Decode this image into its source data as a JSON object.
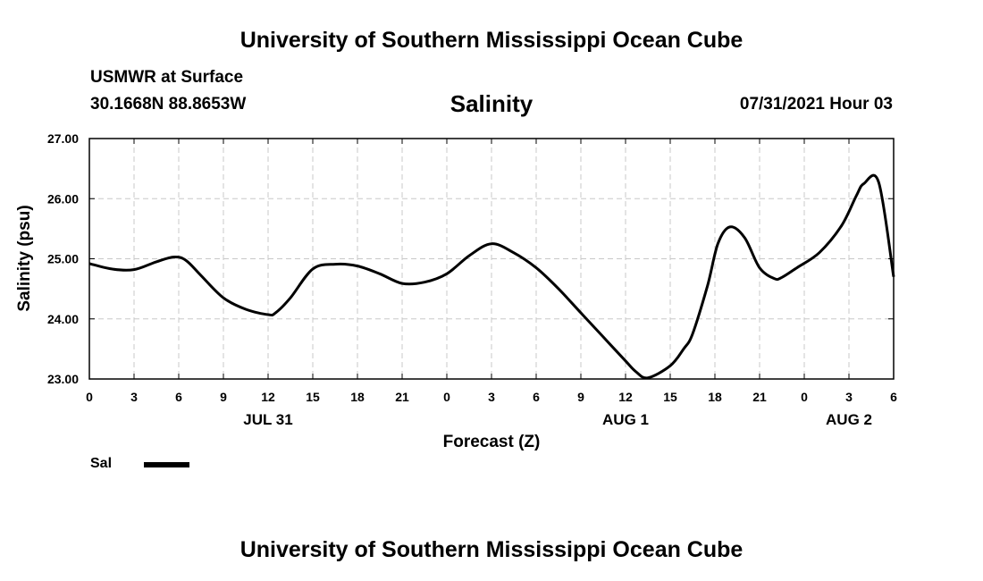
{
  "header": {
    "title": "University of Southern Mississippi Ocean Cube",
    "station_name": "USMWR at Surface",
    "coords": "30.1668N  88.8653W",
    "chart_title": "Salinity",
    "forecast_time": "07/31/2021 Hour 03"
  },
  "footer": {
    "title": "University of Southern Mississippi Ocean Cube"
  },
  "legend": {
    "label": "Sal",
    "color": "#000000"
  },
  "chart_data": {
    "type": "line",
    "title": "Salinity",
    "xlabel": "Forecast (Z)",
    "ylabel": "Salinity (psu)",
    "ylim": [
      23.0,
      27.0
    ],
    "y_ticks": [
      "23.00",
      "24.00",
      "25.00",
      "26.00",
      "27.00"
    ],
    "xlim": [
      0,
      54
    ],
    "x_tick_labels": [
      "0",
      "3",
      "6",
      "9",
      "12",
      "15",
      "18",
      "21",
      "0",
      "3",
      "6",
      "9",
      "12",
      "15",
      "18",
      "21",
      "0",
      "3",
      "6"
    ],
    "date_labels": [
      {
        "label": "JUL 31",
        "at": 12
      },
      {
        "label": "AUG 1",
        "at": 36
      },
      {
        "label": "AUG 2",
        "at": 51
      }
    ],
    "grid": true,
    "line_color": "#000000",
    "series": [
      {
        "name": "Sal",
        "x": [
          0,
          1.5,
          3,
          4.5,
          5.7,
          6.5,
          7.5,
          9,
          10.5,
          12,
          12.5,
          13.5,
          15,
          16.5,
          18,
          19.5,
          21,
          22.5,
          24,
          25.5,
          27,
          28.5,
          30,
          31.5,
          33,
          34.5,
          36,
          36.7,
          37.5,
          39,
          39.9,
          40.5,
          41.5,
          42.2,
          43,
          44,
          45,
          46,
          46.5,
          47.5,
          49,
          50.5,
          51.5,
          52,
          53,
          54
        ],
        "y": [
          24.92,
          24.83,
          24.82,
          24.95,
          25.03,
          24.97,
          24.72,
          24.35,
          24.16,
          24.07,
          24.1,
          24.35,
          24.83,
          24.91,
          24.88,
          24.75,
          24.59,
          24.61,
          24.75,
          25.05,
          25.25,
          25.1,
          24.85,
          24.5,
          24.1,
          23.7,
          23.3,
          23.12,
          23.02,
          23.22,
          23.5,
          23.75,
          24.55,
          25.25,
          25.53,
          25.35,
          24.85,
          24.67,
          24.69,
          24.85,
          25.1,
          25.55,
          26.05,
          26.25,
          26.27,
          24.7
        ]
      }
    ]
  }
}
